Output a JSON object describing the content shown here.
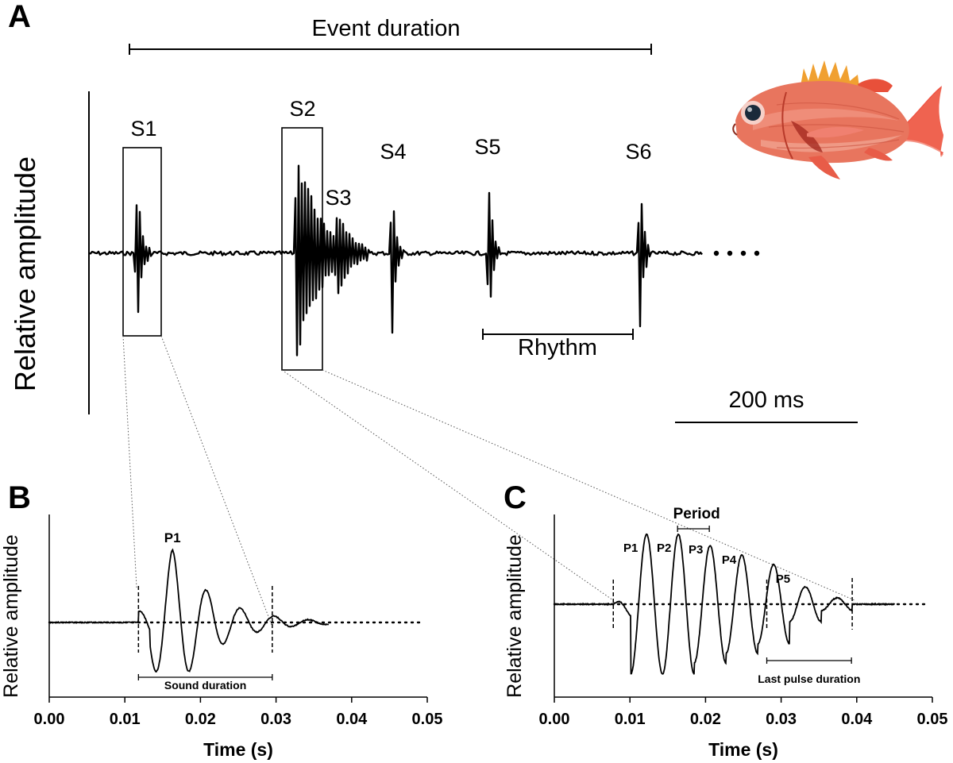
{
  "panels": {
    "a": {
      "letter": "A",
      "ylabel": "Relative amplitude",
      "event_duration_label": "Event duration",
      "rhythm_label": "Rhythm",
      "scale_bar_label": "200 ms",
      "sound_labels": [
        "S1",
        "S2",
        "S3",
        "S4",
        "S5",
        "S6"
      ]
    },
    "b": {
      "letter": "B",
      "ylabel": "Relative amplitude",
      "xlabel": "Time (s)",
      "pulse_label": "P1",
      "duration_label": "Sound duration",
      "ticks": [
        "0.00",
        "0.01",
        "0.02",
        "0.03",
        "0.04",
        "0.05"
      ]
    },
    "c": {
      "letter": "C",
      "ylabel": "Relative amplitude",
      "xlabel": "Time (s)",
      "period_label": "Period",
      "pulse_labels": [
        "P1",
        "P2",
        "P3",
        "P4",
        "P5"
      ],
      "duration_label": "Last pulse duration",
      "ticks": [
        "0.00",
        "0.01",
        "0.02",
        "0.03",
        "0.04",
        "0.05"
      ]
    }
  },
  "chart_data": [
    {
      "type": "line",
      "panel": "A",
      "ylabel": "Relative amplitude",
      "scale_bar": "200 ms",
      "sounds": [
        {
          "label": "S1",
          "peak_amplitude": 1.0
        },
        {
          "label": "S2",
          "peak_amplitude": 1.4
        },
        {
          "label": "S3",
          "peak_amplitude": 0.45
        },
        {
          "label": "S4",
          "peak_amplitude": 1.0
        },
        {
          "label": "S5",
          "peak_amplitude": 1.0
        },
        {
          "label": "S6",
          "peak_amplitude": 1.0
        }
      ],
      "annotations": [
        "Event duration",
        "Rhythm"
      ]
    },
    {
      "type": "line",
      "panel": "B",
      "xlabel": "Time (s)",
      "ylabel": "Relative amplitude",
      "xlim": [
        0,
        0.05
      ],
      "xticks": [
        0.0,
        0.01,
        0.02,
        0.03,
        0.04,
        0.05
      ],
      "sound_start": 0.0118,
      "sound_end": 0.0295,
      "pulses": [
        {
          "label": "P1",
          "time": 0.0163
        }
      ],
      "annotations": [
        "Sound duration"
      ]
    },
    {
      "type": "line",
      "panel": "C",
      "xlabel": "Time (s)",
      "ylabel": "Relative amplitude",
      "xlim": [
        0,
        0.05
      ],
      "xticks": [
        0.0,
        0.01,
        0.02,
        0.03,
        0.04,
        0.05
      ],
      "sound_start": 0.0078,
      "sound_end": 0.0394,
      "pulses": [
        {
          "label": "P1",
          "time": 0.0122
        },
        {
          "label": "P2",
          "time": 0.0163
        },
        {
          "label": "P3",
          "time": 0.0205
        },
        {
          "label": "P4",
          "time": 0.0249
        },
        {
          "label": "P5",
          "time": 0.0292
        }
      ],
      "period": 0.0042,
      "last_pulse_start": 0.0281,
      "last_pulse_end": 0.0393,
      "annotations": [
        "Period",
        "Last pulse duration"
      ]
    }
  ],
  "colors": {
    "trace": "#000000",
    "fish_body": "#e8755e",
    "fish_fin": "#f0a030",
    "fish_eye": "#1a2a3a"
  },
  "icons": {
    "fish": "soldierfish-illustration"
  }
}
